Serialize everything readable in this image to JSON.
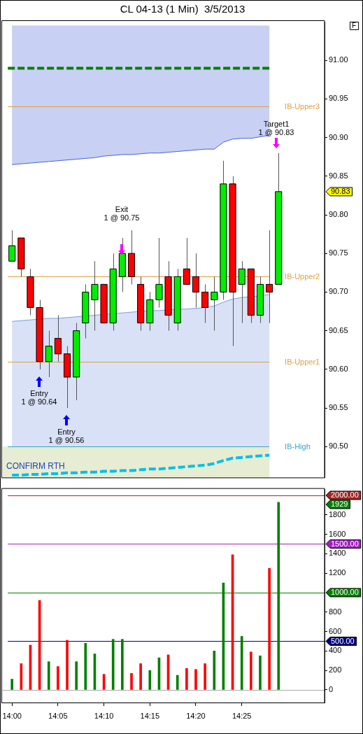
{
  "chart_data": [
    {
      "type": "candlestick",
      "title": "CL 04-13 (1 Min)  3/5/2013",
      "x": [
        14,
        14.0167,
        14.0333,
        14.05,
        14.0667,
        14.0833,
        14.1,
        14.1167,
        14.1333,
        14.15,
        14.1667,
        14.1833,
        14.2,
        14.2167,
        14.2333,
        14.25,
        14.2667,
        14.2833,
        14.3,
        14.3167,
        14.3333,
        14.35,
        14.3667,
        14.3833,
        14.4,
        14.4167,
        14.4333,
        14.45,
        14.4667,
        14.4833
      ],
      "ohlc": [
        [
          90.74,
          90.78,
          90.74,
          90.76
        ],
        [
          90.77,
          90.77,
          90.72,
          90.73
        ],
        [
          90.72,
          90.73,
          90.67,
          90.68
        ],
        [
          90.68,
          90.69,
          90.6,
          90.61
        ],
        [
          90.61,
          90.65,
          90.59,
          90.63
        ],
        [
          90.64,
          90.67,
          90.61,
          90.62
        ],
        [
          90.62,
          90.63,
          90.55,
          90.59
        ],
        [
          90.59,
          90.66,
          90.56,
          90.65
        ],
        [
          90.66,
          90.71,
          90.64,
          90.7
        ],
        [
          90.69,
          90.74,
          90.65,
          90.71
        ],
        [
          90.71,
          90.71,
          90.66,
          90.66
        ],
        [
          90.66,
          90.75,
          90.65,
          90.73
        ],
        [
          90.72,
          90.77,
          90.7,
          90.75
        ],
        [
          90.75,
          90.78,
          90.71,
          90.72
        ],
        [
          90.71,
          90.72,
          90.65,
          90.66
        ],
        [
          90.66,
          90.7,
          90.65,
          90.69
        ],
        [
          90.69,
          90.77,
          90.68,
          90.71
        ],
        [
          90.72,
          90.74,
          90.65,
          90.67
        ],
        [
          90.66,
          90.73,
          90.65,
          90.72
        ],
        [
          90.73,
          90.77,
          90.71,
          90.71
        ],
        [
          90.72,
          90.75,
          90.68,
          90.7
        ],
        [
          90.7,
          90.71,
          90.66,
          90.68
        ],
        [
          90.69,
          90.72,
          90.65,
          90.7
        ],
        [
          90.7,
          90.87,
          90.69,
          90.84
        ],
        [
          90.84,
          90.85,
          90.63,
          90.7
        ],
        [
          90.71,
          90.74,
          90.66,
          90.73
        ],
        [
          90.73,
          90.73,
          90.66,
          90.67
        ],
        [
          90.67,
          90.72,
          90.66,
          90.71
        ],
        [
          90.71,
          90.78,
          90.66,
          90.7
        ],
        [
          90.71,
          90.88,
          90.71,
          90.83
        ]
      ],
      "colors": [
        "#00ee00",
        "#ff0000",
        "#ff0000",
        "#ff0000",
        "#00ee00",
        "#ff0000",
        "#ff0000",
        "#00ee00",
        "#00ee00",
        "#00ee00",
        "#ff0000",
        "#00ee00",
        "#00ee00",
        "#ff0000",
        "#ff0000",
        "#00ee00",
        "#00ee00",
        "#ff0000",
        "#00ee00",
        "#ff0000",
        "#ff0000",
        "#ff0000",
        "#00ee00",
        "#00ee00",
        "#ff0000",
        "#00ee00",
        "#ff0000",
        "#00ee00",
        "#ff0000",
        "#00ee00"
      ],
      "series": [
        {
          "type": "line",
          "color": "#4a62d8",
          "values": [
            90.865,
            90.866,
            90.867,
            90.868,
            90.869,
            90.87,
            90.871,
            90.872,
            90.873,
            90.874,
            90.876,
            90.877,
            90.878,
            90.878,
            90.879,
            90.88,
            90.88,
            90.881,
            90.882,
            90.883,
            90.884,
            90.885,
            90.885,
            90.894,
            90.898,
            90.899,
            90.899,
            90.901,
            90.903,
            null
          ],
          "lower": [
            90.865,
            90.866,
            90.867,
            90.868,
            90.869,
            90.87,
            90.871,
            90.872,
            90.873,
            90.874,
            90.876,
            90.877,
            90.878,
            90.878,
            90.879,
            90.88,
            90.88,
            90.881,
            90.882,
            90.883,
            90.884,
            90.885,
            90.885,
            90.894,
            90.898,
            90.899,
            90.899,
            90.901,
            90.903,
            null
          ],
          "upper": [
            91.045,
            91.045,
            91.045,
            91.045,
            91.045,
            91.045,
            91.045,
            91.045,
            91.045,
            91.045,
            91.045,
            91.045,
            91.045,
            91.045,
            91.045,
            91.045,
            91.045,
            91.045,
            91.045,
            91.045,
            91.045,
            91.045,
            91.045,
            91.045,
            91.045,
            91.045,
            91.045,
            91.045,
            91.045,
            null
          ]
        },
        {
          "type": "area",
          "color": "#7d9be0",
          "values": [
            90.662,
            90.663,
            90.664,
            90.665,
            90.666,
            90.666,
            90.667,
            90.668,
            90.669,
            90.67,
            90.671,
            90.672,
            90.673,
            90.674,
            90.675,
            90.676,
            90.676,
            90.677,
            90.678,
            90.678,
            90.679,
            90.68,
            90.682,
            90.687,
            90.691,
            90.693,
            90.694,
            90.695,
            90.697,
            null
          ]
        },
        {
          "type": "line",
          "color": "#00c0e8",
          "line_style": "dashed",
          "values": [
            90.463,
            90.463,
            90.464,
            90.464,
            90.465,
            90.465,
            90.466,
            90.466,
            90.467,
            90.467,
            90.468,
            90.468,
            90.469,
            90.469,
            90.47,
            90.471,
            90.471,
            90.472,
            90.473,
            90.474,
            90.475,
            90.476,
            90.478,
            90.482,
            90.485,
            90.486,
            90.487,
            90.488,
            90.489,
            null
          ]
        }
      ],
      "xlim": [
        13.9833,
        14.5667
      ],
      "ylim": [
        90.46,
        91.05
      ],
      "yticks": [
        {
          "value": 90.5,
          "label": "90.50"
        },
        {
          "value": 90.55,
          "label": "90.55"
        },
        {
          "value": 90.6,
          "label": "90.60"
        },
        {
          "value": 90.65,
          "label": "90.65"
        },
        {
          "value": 90.7,
          "label": "90.70"
        },
        {
          "value": 90.75,
          "label": "90.75"
        },
        {
          "value": 90.8,
          "label": "90.80"
        },
        {
          "value": 90.85,
          "label": "90.85"
        },
        {
          "value": 90.9,
          "label": "90.90"
        },
        {
          "value": 90.95,
          "label": "90.95"
        },
        {
          "value": 91,
          "label": "91.00"
        }
      ],
      "ref_lines": [
        {
          "axis": "y",
          "value": 90.99,
          "color": "#008000",
          "line_style": "dashed"
        },
        {
          "axis": "y",
          "value": 90.94,
          "label": "IB-Upper3",
          "color": "#e0a040"
        },
        {
          "axis": "y",
          "value": 90.72,
          "label": "IB-Upper2",
          "color": "#e0a040"
        },
        {
          "axis": "y",
          "value": 90.61,
          "label": "IB-Upper1",
          "color": "#e0a040"
        },
        {
          "axis": "y",
          "value": 90.5,
          "label": "IB-High",
          "color": "#38a8c0"
        }
      ],
      "bands": [
        {
          "axis": "y",
          "from": 90.46,
          "to": 90.5,
          "label": "CONFIRM RTH",
          "color": "#e6edd2"
        }
      ],
      "annotations": [
        "F",
        "Entry\n1 @ 90.64",
        "Entry\n1 @ 90.56",
        "Exit\n1 @ 90.75",
        "Target1\n1 @ 90.83",
        {
          "text": "90.83",
          "y": 90.83
        }
      ],
      "tick_labels": "y",
      "grid": false,
      "legend": false
    },
    {
      "type": "bar",
      "x": [
        14,
        14.0167,
        14.0333,
        14.05,
        14.0667,
        14.0833,
        14.1,
        14.1167,
        14.1333,
        14.15,
        14.1667,
        14.1833,
        14.2,
        14.2167,
        14.2333,
        14.25,
        14.2667,
        14.2833,
        14.3,
        14.3167,
        14.3333,
        14.35,
        14.3667,
        14.3833,
        14.4,
        14.4167,
        14.4333,
        14.45,
        14.4667,
        14.4833
      ],
      "values": [
        110,
        270,
        460,
        920,
        290,
        240,
        510,
        290,
        480,
        370,
        160,
        520,
        520,
        170,
        270,
        200,
        330,
        360,
        150,
        220,
        210,
        270,
        400,
        1100,
        1390,
        550,
        390,
        350,
        1250,
        1929
      ],
      "colors": [
        "#008000",
        "#ff0000",
        "#ff0000",
        "#ff0000",
        "#008000",
        "#ff0000",
        "#ff0000",
        "#008000",
        "#008000",
        "#008000",
        "#ff0000",
        "#008000",
        "#008000",
        "#ff0000",
        "#ff0000",
        "#008000",
        "#008000",
        "#ff0000",
        "#008000",
        "#ff0000",
        "#ff0000",
        "#ff0000",
        "#008000",
        "#008000",
        "#ff0000",
        "#008000",
        "#ff0000",
        "#008000",
        "#ff0000",
        "#008000"
      ],
      "xlim": [
        13.9833,
        14.5667
      ],
      "xticks": [
        {
          "value": 14,
          "label": "14:00"
        },
        {
          "value": 14.0833,
          "label": "14:05"
        },
        {
          "value": 14.1667,
          "label": "14:10"
        },
        {
          "value": 14.25,
          "label": "14:15"
        },
        {
          "value": 14.3333,
          "label": "14:20"
        },
        {
          "value": 14.4167,
          "label": "14:25"
        }
      ],
      "ylim": [
        -130,
        2060
      ],
      "yticks": [
        0,
        200,
        400,
        600,
        800,
        1200,
        1400,
        1600,
        1800
      ],
      "ref_lines": [
        {
          "axis": "y",
          "value": 0,
          "color": "#aaaaaa"
        },
        {
          "axis": "y",
          "value": 500,
          "label": "500.00",
          "color": "#000080"
        },
        {
          "axis": "y",
          "value": 1000,
          "label": "1000.00",
          "color": "#008000"
        },
        {
          "axis": "y",
          "value": 1500,
          "label": "1500.00",
          "color": "#a020c0"
        },
        {
          "axis": "y",
          "value": 2000,
          "label": "2000.00",
          "color": "#a02828"
        }
      ],
      "annotations": [
        "1929"
      ],
      "grid": false,
      "legend": false
    }
  ]
}
